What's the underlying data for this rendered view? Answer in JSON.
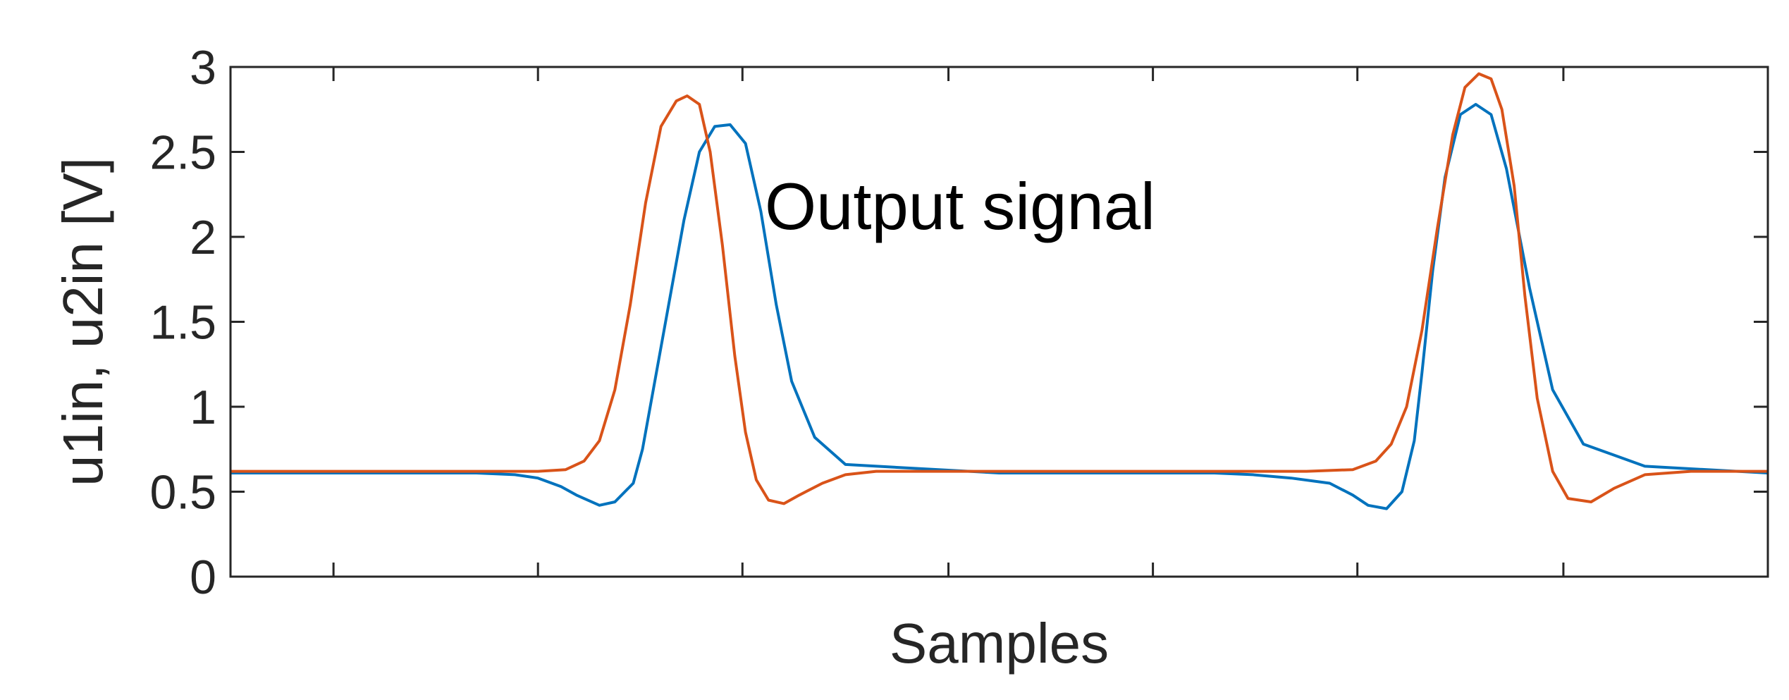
{
  "chart_data": {
    "type": "line",
    "title": "",
    "xlabel": "Samples",
    "ylabel": "u1in, u2in [V]",
    "annotation": "Output signal",
    "xlim": [
      0,
      1000
    ],
    "ylim": [
      0,
      3
    ],
    "yticks": [
      "0",
      "0.5",
      "1",
      "1.5",
      "2",
      "2.5",
      "3"
    ],
    "xticks": [
      67,
      200,
      333,
      467,
      600,
      733,
      867
    ],
    "grid": false,
    "colors": {
      "series1": "#0072BD",
      "series2": "#D95319",
      "axis": "#262626"
    },
    "series": [
      {
        "color": "#0072BD",
        "x": [
          0,
          100,
          160,
          185,
          200,
          215,
          225,
          240,
          250,
          262,
          268,
          275,
          285,
          295,
          305,
          315,
          325,
          335,
          345,
          355,
          365,
          380,
          400,
          500,
          600,
          640,
          665,
          690,
          715,
          730,
          740,
          752,
          762,
          770,
          775,
          782,
          790,
          800,
          810,
          820,
          830,
          845,
          860,
          880,
          920,
          1000
        ],
        "y": [
          0.61,
          0.61,
          0.61,
          0.6,
          0.58,
          0.53,
          0.48,
          0.42,
          0.44,
          0.55,
          0.75,
          1.1,
          1.6,
          2.1,
          2.5,
          2.65,
          2.66,
          2.55,
          2.15,
          1.6,
          1.15,
          0.82,
          0.66,
          0.61,
          0.61,
          0.61,
          0.6,
          0.58,
          0.55,
          0.48,
          0.42,
          0.4,
          0.5,
          0.8,
          1.2,
          1.8,
          2.35,
          2.72,
          2.78,
          2.72,
          2.4,
          1.7,
          1.1,
          0.78,
          0.65,
          0.61
        ]
      },
      {
        "color": "#D95319",
        "x": [
          0,
          100,
          200,
          218,
          230,
          240,
          250,
          260,
          270,
          280,
          290,
          297,
          305,
          312,
          320,
          328,
          335,
          342,
          350,
          360,
          370,
          385,
          400,
          420,
          440,
          500,
          600,
          700,
          730,
          745,
          755,
          765,
          775,
          785,
          795,
          803,
          812,
          820,
          827,
          835,
          842,
          850,
          860,
          870,
          885,
          900,
          920,
          950,
          1000
        ],
        "y": [
          0.62,
          0.62,
          0.62,
          0.63,
          0.68,
          0.8,
          1.1,
          1.6,
          2.2,
          2.65,
          2.8,
          2.83,
          2.78,
          2.5,
          1.95,
          1.3,
          0.85,
          0.57,
          0.45,
          0.43,
          0.48,
          0.55,
          0.6,
          0.62,
          0.62,
          0.62,
          0.62,
          0.62,
          0.63,
          0.68,
          0.78,
          1.0,
          1.45,
          2.05,
          2.6,
          2.88,
          2.96,
          2.93,
          2.75,
          2.3,
          1.65,
          1.05,
          0.62,
          0.46,
          0.44,
          0.52,
          0.6,
          0.62,
          0.62
        ]
      }
    ]
  }
}
